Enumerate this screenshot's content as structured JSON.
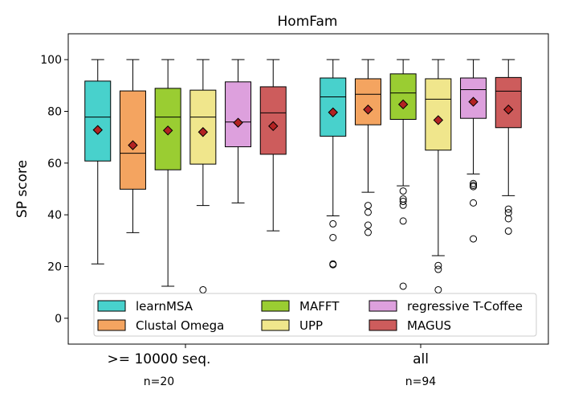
{
  "chart_data": {
    "type": "boxplot",
    "title": "HomFam",
    "ylabel": "SP score",
    "xlabel": "",
    "ylim": [
      -10,
      110
    ],
    "yticks": [
      0,
      20,
      40,
      60,
      80,
      100
    ],
    "grid": false,
    "legend_position": "lower center",
    "groups": [
      {
        "label": ">= 10000 seq.",
        "sublabel": "n=20"
      },
      {
        "label": "all",
        "sublabel": "n=94"
      }
    ],
    "series": [
      {
        "name": "learnMSA",
        "color": "#48D1CC",
        "boxes": [
          {
            "whisker_low": 21,
            "q1": 60.8,
            "median": 77.8,
            "q3": 91.7,
            "whisker_high": 100,
            "mean": 72.8,
            "outliers": []
          },
          {
            "whisker_low": 39.6,
            "q1": 70.4,
            "median": 85.6,
            "q3": 92.9,
            "whisker_high": 100,
            "mean": 79.6,
            "outliers": [
              36.5,
              31.2,
              21,
              20.7
            ]
          }
        ]
      },
      {
        "name": "Clustal Omega",
        "color": "#F4A460",
        "boxes": [
          {
            "whisker_low": 33.1,
            "q1": 49.9,
            "median": 63.8,
            "q3": 87.9,
            "whisker_high": 100,
            "mean": 66.9,
            "outliers": []
          },
          {
            "whisker_low": 48.7,
            "q1": 74.8,
            "median": 86.6,
            "q3": 92.6,
            "whisker_high": 100,
            "mean": 80.7,
            "outliers": [
              43.6,
              41,
              36,
              33.2
            ]
          }
        ]
      },
      {
        "name": "MAFFT",
        "color": "#9ACD32",
        "boxes": [
          {
            "whisker_low": 12.4,
            "q1": 57.4,
            "median": 77.8,
            "q3": 88.9,
            "whisker_high": 100,
            "mean": 72.6,
            "outliers": []
          },
          {
            "whisker_low": 51.2,
            "q1": 76.9,
            "median": 87.1,
            "q3": 94.5,
            "whisker_high": 100,
            "mean": 82.7,
            "outliers": [
              49.2,
              46.1,
              45.2,
              43.7,
              37.6,
              12.4
            ]
          }
        ]
      },
      {
        "name": "UPP",
        "color": "#F0E68C",
        "boxes": [
          {
            "whisker_low": 43.6,
            "q1": 59.6,
            "median": 77.8,
            "q3": 88.2,
            "whisker_high": 100,
            "mean": 72.0,
            "outliers": [
              11
            ]
          },
          {
            "whisker_low": 24.2,
            "q1": 65.0,
            "median": 84.7,
            "q3": 92.6,
            "whisker_high": 100,
            "mean": 76.6,
            "outliers": [
              20.4,
              18.9,
              11
            ]
          }
        ]
      },
      {
        "name": "regressive T-Coffee",
        "color": "#DDA0DD",
        "boxes": [
          {
            "whisker_low": 44.6,
            "q1": 66.3,
            "median": 75.9,
            "q3": 91.4,
            "whisker_high": 100,
            "mean": 75.6,
            "outliers": []
          },
          {
            "whisker_low": 55.8,
            "q1": 77.3,
            "median": 88.4,
            "q3": 92.9,
            "whisker_high": 100,
            "mean": 83.7,
            "outliers": [
              52.1,
              51.4,
              50.9,
              44.6,
              30.7
            ]
          }
        ]
      },
      {
        "name": "MAGUS",
        "color": "#CD5C5C",
        "boxes": [
          {
            "whisker_low": 33.8,
            "q1": 63.4,
            "median": 79.4,
            "q3": 89.5,
            "whisker_high": 100,
            "mean": 74.3,
            "outliers": []
          },
          {
            "whisker_low": 47.4,
            "q1": 73.7,
            "median": 87.8,
            "q3": 93.1,
            "whisker_high": 100,
            "mean": 80.7,
            "outliers": [
              42.2,
              40.8,
              38.5,
              33.7
            ]
          }
        ]
      }
    ]
  }
}
